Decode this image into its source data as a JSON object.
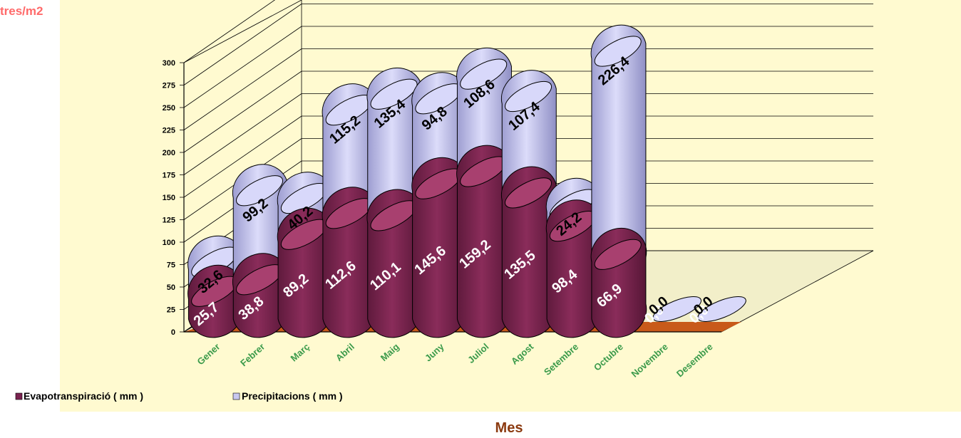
{
  "chart_data": {
    "type": "bar",
    "title": "",
    "ylabel": "tres/m2",
    "xlabel": "Mes",
    "ylim": [
      0,
      300
    ],
    "yticks": [
      "0",
      "25",
      "50",
      "75",
      "100",
      "125",
      "150",
      "175",
      "200",
      "225",
      "250",
      "275",
      "300"
    ],
    "categories": [
      "Gener",
      "Febrer",
      "Març",
      "Abril",
      "Maig",
      "Juny",
      "Juliol",
      "Agost",
      "Setembre",
      "Octubre",
      "Novembre",
      "Desembre"
    ],
    "series": [
      {
        "name": "Evapotranspiració ( mm )",
        "values": [
          25.7,
          38.8,
          89.2,
          112.6,
          110.1,
          145.6,
          159.2,
          135.5,
          98.4,
          66.9,
          0.0,
          0.0
        ],
        "labels": [
          "25,7",
          "38,8",
          "89,2",
          "112,6",
          "110,1",
          "145,6",
          "159,2",
          "135,5",
          "98,4",
          "66,9",
          "0,0",
          "0,0"
        ]
      },
      {
        "name": "Precipitacions ( mm )",
        "values": [
          32.6,
          99.2,
          40.2,
          115.2,
          135.4,
          94.8,
          108.6,
          107.4,
          24.2,
          226.4,
          0.0,
          0.0
        ],
        "labels": [
          "32,6",
          "99,2",
          "40,2",
          "115,2",
          "135,4",
          "94,8",
          "108,6",
          "107,4",
          "24,2",
          "226,4",
          "0,0",
          "0,0"
        ]
      }
    ],
    "stacked": true,
    "legend_position": "bottom-left",
    "colors": {
      "evap": "#7a2350",
      "evap_top": "#a8406f",
      "precip": "#b8b8e8",
      "precip_top": "#d8d8fa",
      "floor": "#c85a1a",
      "wall": "#fffad0",
      "label_evap": "#ffffff",
      "label_precip": "#000000",
      "category_text": "#3a9a4a",
      "axis_title": "#8b3a10",
      "ylabel_color": "#ff6a6a"
    }
  },
  "legend": {
    "items": [
      "Evapotranspiració ( mm )",
      "Precipitacions ( mm )"
    ]
  }
}
